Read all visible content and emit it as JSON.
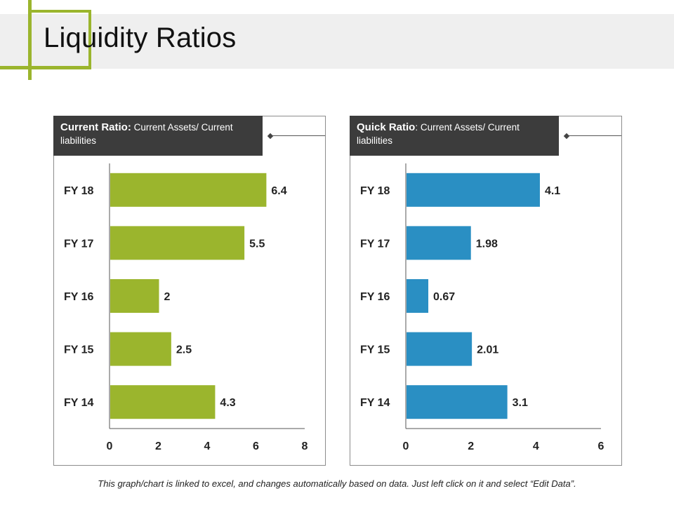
{
  "page": {
    "title": "Liquidity Ratios",
    "footer": "This graph/chart is linked to excel, and changes automatically based on data. Just left click on it and select “Edit Data”."
  },
  "colors": {
    "accent": "#9bb52d",
    "header_bg": "#3c3c3c",
    "current_bar": "#9bb52d",
    "quick_bar": "#2a8fc3"
  },
  "chart_data": [
    {
      "type": "bar",
      "orientation": "horizontal",
      "title_bold": "Current Ratio:",
      "title_rest": " Current Assets/ Current liabilities",
      "categories": [
        "FY 18",
        "FY 17",
        "FY 16",
        "FY 15",
        "FY 14"
      ],
      "values": [
        6.4,
        5.5,
        2,
        2.5,
        4.3
      ],
      "value_labels": [
        "6.4",
        "5.5",
        "2",
        "2.5",
        "4.3"
      ],
      "xlim": [
        0,
        8
      ],
      "xticks": [
        "0",
        "2",
        "4",
        "6",
        "8"
      ],
      "color": "#9bb52d"
    },
    {
      "type": "bar",
      "orientation": "horizontal",
      "title_bold": "Quick Ratio",
      "title_rest": ": Current Assets/ Current liabilities",
      "categories": [
        "FY 18",
        "FY 17",
        "FY 16",
        "FY 15",
        "FY 14"
      ],
      "values": [
        4.1,
        1.98,
        0.67,
        2.01,
        3.1
      ],
      "value_labels": [
        "4.1",
        "1.98",
        "0.67",
        "2.01",
        "3.1"
      ],
      "xlim": [
        0,
        6
      ],
      "xticks": [
        "0",
        "2",
        "4",
        "6"
      ],
      "color": "#2a8fc3"
    }
  ]
}
